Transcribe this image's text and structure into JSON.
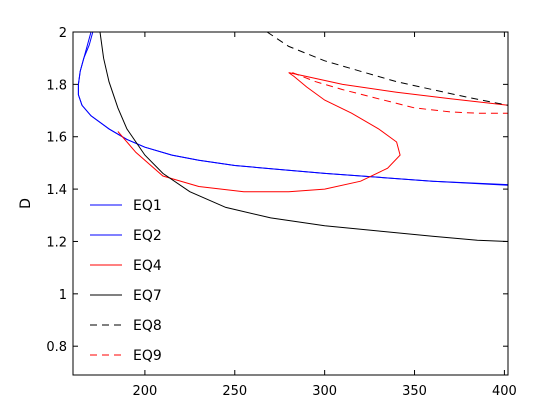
{
  "chart_data": {
    "type": "line",
    "title": "",
    "xlabel": "",
    "ylabel": "D",
    "xlim": [
      160,
      402
    ],
    "ylim": [
      0.69,
      2.0
    ],
    "xticks": [
      200,
      250,
      300,
      350,
      400
    ],
    "yticks": [
      0.8,
      1,
      1.2,
      1.4,
      1.6,
      1.8,
      2
    ],
    "grid": false,
    "legend": {
      "position": "bottom-left"
    },
    "series": [
      {
        "name": "EQ1",
        "color": "#0000ff",
        "dash": "solid",
        "x": [
          170,
          168,
          166,
          164,
          163,
          163,
          165,
          170,
          180,
          190,
          200,
          215,
          230,
          250,
          275,
          300,
          330,
          360,
          402
        ],
        "y": [
          2.0,
          1.95,
          1.9,
          1.85,
          1.8,
          1.76,
          1.72,
          1.68,
          1.63,
          1.59,
          1.56,
          1.53,
          1.51,
          1.49,
          1.475,
          1.46,
          1.445,
          1.43,
          1.415
        ]
      },
      {
        "name": "EQ2",
        "color": "#0000ff",
        "dash": "solid",
        "x": [
          171,
          169,
          166,
          164,
          163,
          163,
          165,
          170,
          180,
          190,
          200,
          215,
          230,
          250,
          275,
          300,
          330,
          360,
          402
        ],
        "y": [
          2.0,
          1.95,
          1.9,
          1.85,
          1.8,
          1.76,
          1.72,
          1.68,
          1.63,
          1.59,
          1.56,
          1.53,
          1.51,
          1.49,
          1.475,
          1.46,
          1.445,
          1.43,
          1.417
        ]
      },
      {
        "name": "EQ4",
        "color": "#ff0000",
        "dash": "solid",
        "x": [
          185,
          195,
          210,
          230,
          255,
          280,
          300,
          320,
          335,
          342,
          340,
          330,
          315,
          300,
          290,
          283,
          280,
          290,
          310,
          340,
          370,
          402
        ],
        "y": [
          1.62,
          1.54,
          1.45,
          1.41,
          1.39,
          1.39,
          1.4,
          1.43,
          1.48,
          1.53,
          1.58,
          1.63,
          1.69,
          1.74,
          1.79,
          1.83,
          1.845,
          1.83,
          1.8,
          1.77,
          1.745,
          1.72
        ]
      },
      {
        "name": "EQ7",
        "color": "#000000",
        "dash": "solid",
        "x": [
          175,
          177,
          180,
          185,
          190,
          200,
          210,
          225,
          245,
          270,
          300,
          330,
          360,
          385,
          402
        ],
        "y": [
          2.0,
          1.9,
          1.81,
          1.71,
          1.63,
          1.53,
          1.46,
          1.39,
          1.33,
          1.29,
          1.26,
          1.24,
          1.22,
          1.205,
          1.2
        ]
      },
      {
        "name": "EQ8",
        "color": "#000000",
        "dash": "dashed",
        "x": [
          268,
          280,
          300,
          320,
          340,
          360,
          380,
          402
        ],
        "y": [
          2.0,
          1.945,
          1.89,
          1.85,
          1.81,
          1.78,
          1.75,
          1.72
        ]
      },
      {
        "name": "EQ9",
        "color": "#ff0000",
        "dash": "dashed",
        "x": [
          282,
          295,
          310,
          330,
          350,
          370,
          385,
          402
        ],
        "y": [
          1.845,
          1.81,
          1.78,
          1.745,
          1.71,
          1.695,
          1.69,
          1.69
        ]
      }
    ]
  }
}
